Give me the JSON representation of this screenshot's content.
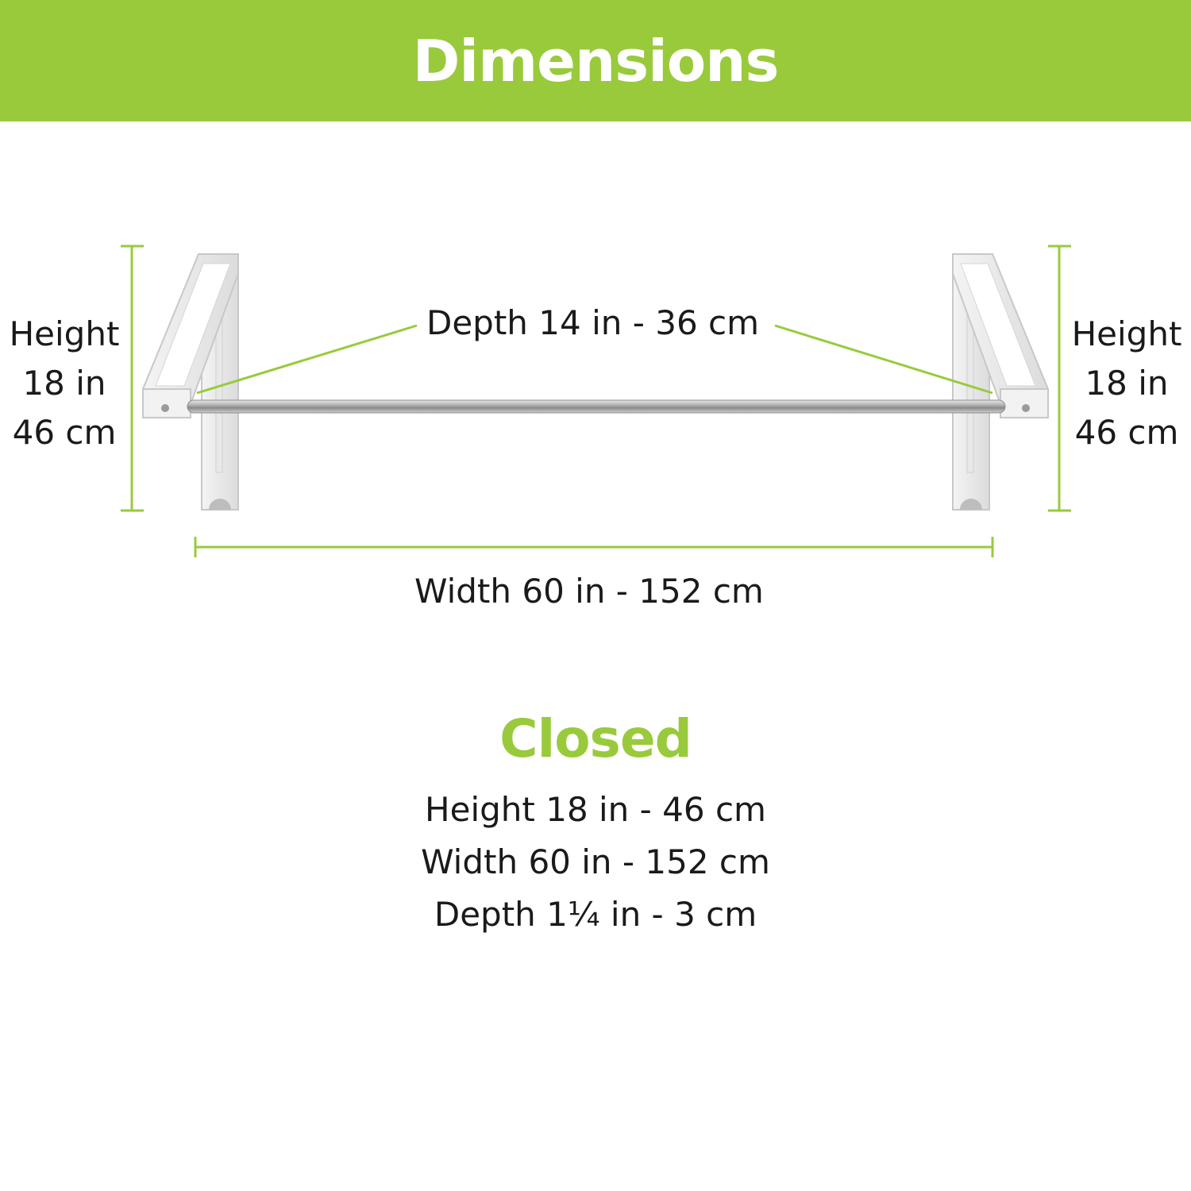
{
  "header": {
    "title": "Dimensions"
  },
  "diagram": {
    "depth_label": "Depth 14 in - 36 cm",
    "width_label": "Width 60 in - 152 cm",
    "left_height": {
      "line1": "Height",
      "line2": "18 in",
      "line3": "46 cm"
    },
    "right_height": {
      "line1": "Height",
      "line2": "18 in",
      "line3": "46 cm"
    },
    "dimension_line_color": "#99ca3c"
  },
  "closed": {
    "title": "Closed",
    "height": "Height 18 in - 46 cm",
    "width": "Width 60 in - 152 cm",
    "depth": "Depth 1¼ in - 3 cm"
  }
}
